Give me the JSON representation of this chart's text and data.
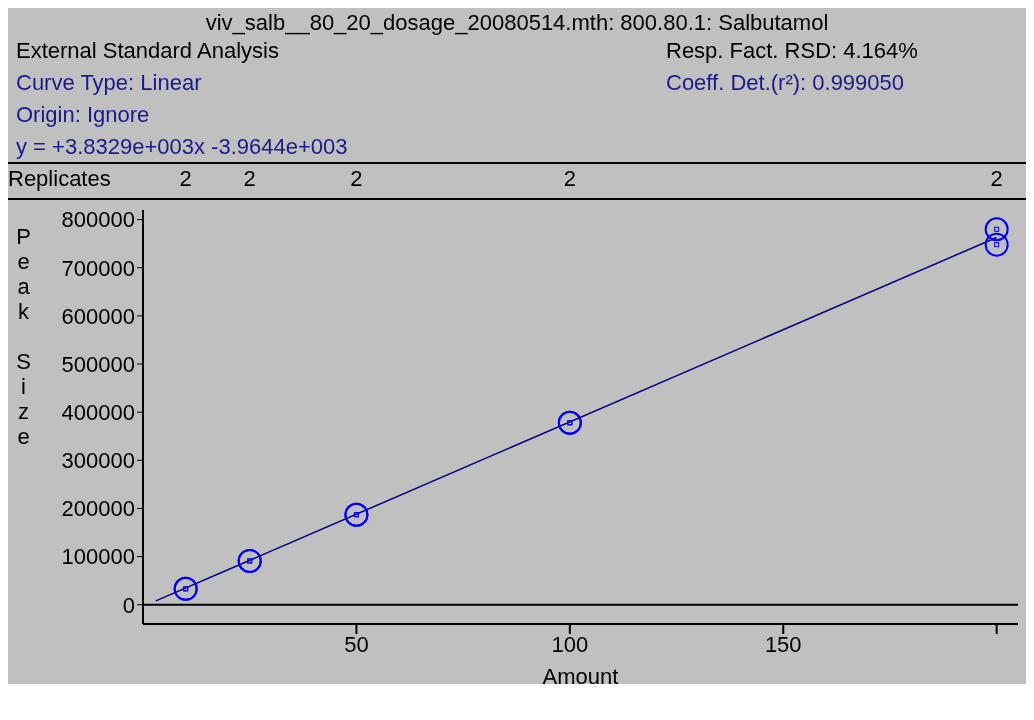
{
  "chart_data": {
    "type": "scatter",
    "title": "viv_salb__80_20_dosage_20080514.mth: 800.80.1: Salbutamol",
    "annotations": [
      "External Standard Analysis",
      "Resp. Fact. RSD: 4.164%",
      "Curve Type: Linear",
      "Coeff. Det.(r²): 0.999050",
      "Origin: Ignore",
      "y = +3.8329e+003x -3.9644e+003",
      "Replicates",
      "2",
      "2",
      "2",
      "2",
      "2"
    ],
    "xlabel": "Amount",
    "ylabel": "Peak Size",
    "series": [
      {
        "color": "#0000ff",
        "x": [
          10,
          10,
          25,
          25,
          50,
          50,
          100,
          100,
          200,
          200
        ],
        "values": [
          33000,
          33000,
          91000,
          91000,
          187000,
          187000,
          378000,
          378000,
          780000,
          748000
        ]
      },
      {
        "type": "line",
        "marker": "none",
        "color": "#000080",
        "x": [
          3,
          200
        ],
        "values": [
          8000,
          763000
        ]
      }
    ],
    "xlim": [
      0,
      205
    ],
    "xticks": [
      50,
      100,
      150,
      {
        "value": 200,
        "label": null
      }
    ],
    "ylim": [
      -40000,
      820000
    ],
    "yticks": [
      0,
      100000,
      200000,
      300000,
      400000,
      500000,
      600000,
      700000,
      800000
    ],
    "ref_lines": [
      {
        "axis": "y",
        "value": 0,
        "color": "#000000"
      }
    ],
    "grid": false,
    "legend": false,
    "marker": "circle",
    "line_style": "solid"
  }
}
